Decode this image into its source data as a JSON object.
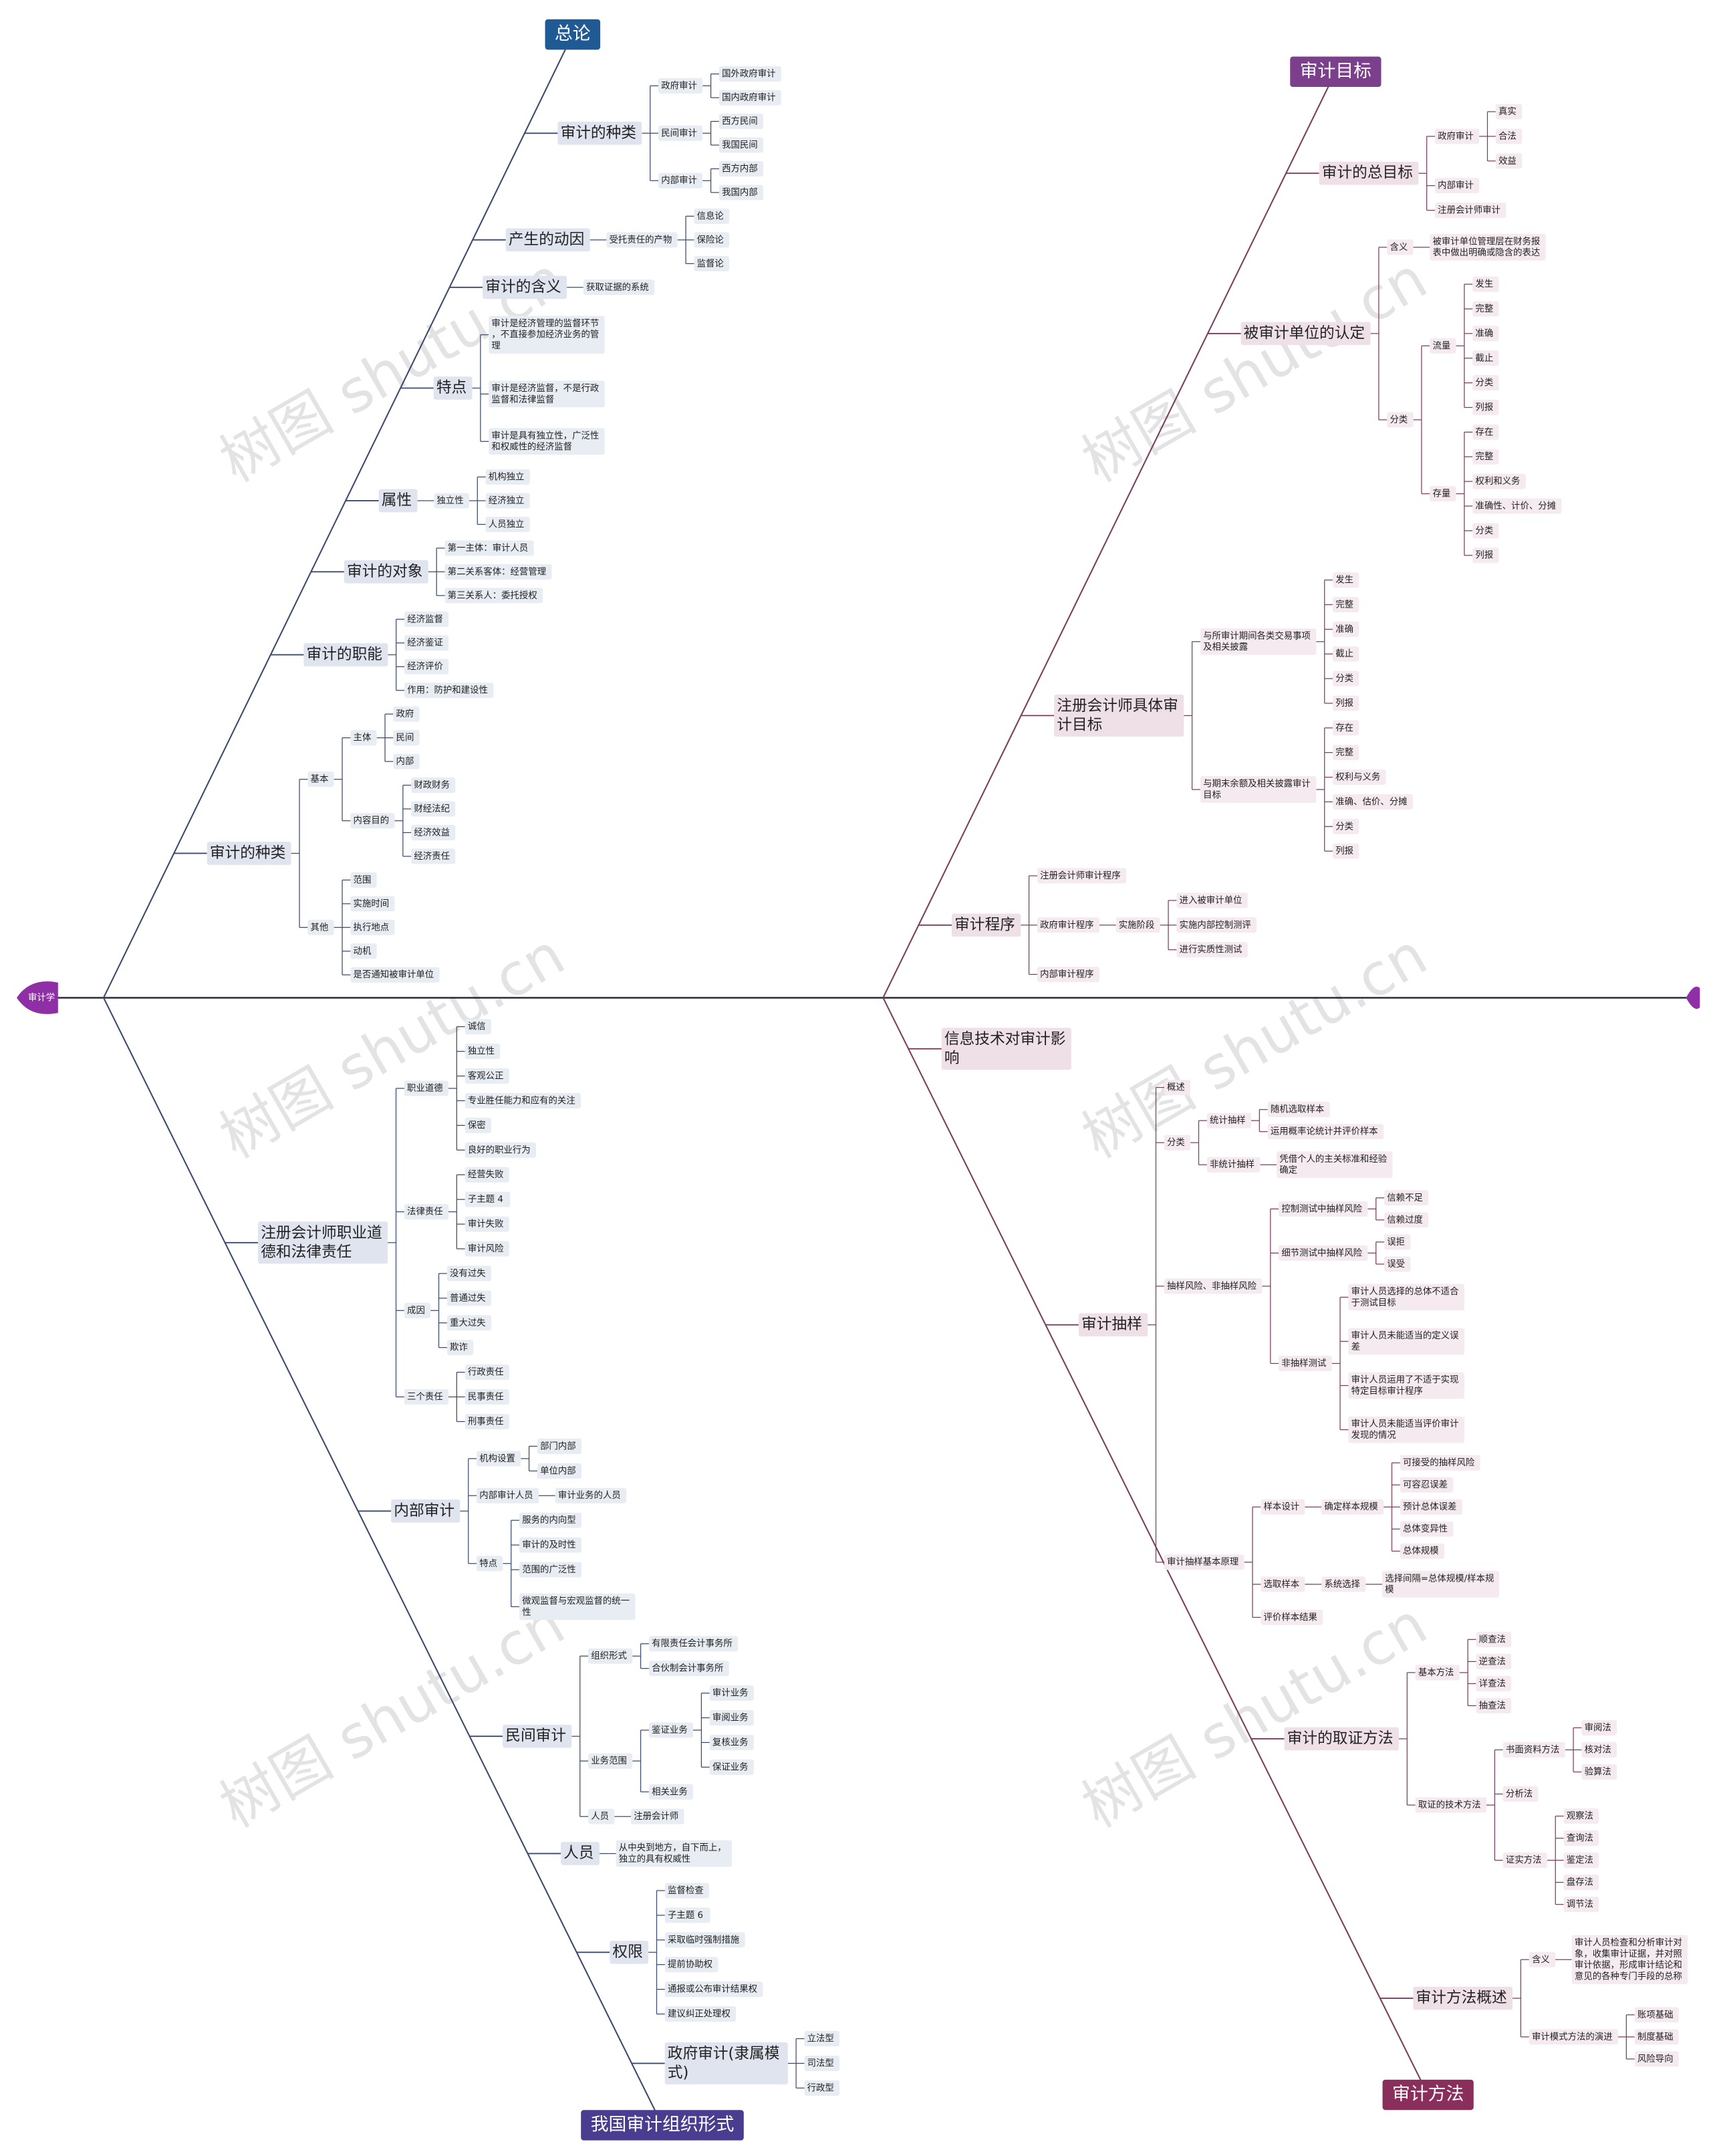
{
  "root": "审计学",
  "watermark": "树图 shutu.cn",
  "quadrants": [
    {
      "title": "总论",
      "branches": [
        {
          "label": "审计的种类",
          "children": [
            {
              "label": "政府审计",
              "children": [
                {
                  "label": "国外政府审计"
                },
                {
                  "label": "国内政府审计"
                }
              ]
            },
            {
              "label": "民间审计",
              "children": [
                {
                  "label": "西方民间"
                },
                {
                  "label": "我国民间"
                }
              ]
            },
            {
              "label": "内部审计",
              "children": [
                {
                  "label": "西方内部"
                },
                {
                  "label": "我国内部"
                }
              ]
            }
          ]
        },
        {
          "label": "产生的动因",
          "children": [
            {
              "label": "受托责任的产物",
              "children": [
                {
                  "label": "信息论"
                },
                {
                  "label": "保险论"
                },
                {
                  "label": "监督论"
                }
              ]
            }
          ]
        },
        {
          "label": "审计的含义",
          "children": [
            {
              "label": "获取证据的系统"
            }
          ]
        },
        {
          "label": "特点",
          "children": [
            {
              "label": "审计是经济管理的监督环节，不直接参加经济业务的管理"
            },
            {
              "label": "审计是经济监督，不是行政监督和法律监督"
            },
            {
              "label": "审计是具有独立性，广泛性和权威性的经济监督"
            }
          ]
        },
        {
          "label": "属性",
          "children": [
            {
              "label": "独立性",
              "children": [
                {
                  "label": "机构独立"
                },
                {
                  "label": "经济独立"
                },
                {
                  "label": "人员独立"
                }
              ]
            }
          ]
        },
        {
          "label": "审计的对象",
          "children": [
            {
              "label": "第一主体：审计人员"
            },
            {
              "label": "第二关系客体：经营管理"
            },
            {
              "label": "第三关系人：委托授权"
            }
          ]
        },
        {
          "label": "审计的职能",
          "children": [
            {
              "label": "经济监督"
            },
            {
              "label": "经济鉴证"
            },
            {
              "label": "经济评价"
            },
            {
              "label": "作用：防护和建设性"
            }
          ]
        },
        {
          "label": "审计的种类",
          "children": [
            {
              "label": "基本",
              "children": [
                {
                  "label": "主体",
                  "children": [
                    {
                      "label": "政府"
                    },
                    {
                      "label": "民间"
                    },
                    {
                      "label": "内部"
                    }
                  ]
                },
                {
                  "label": "内容目的",
                  "children": [
                    {
                      "label": "财政财务"
                    },
                    {
                      "label": "财经法纪"
                    },
                    {
                      "label": "经济效益"
                    },
                    {
                      "label": "经济责任"
                    }
                  ]
                }
              ]
            },
            {
              "label": "其他",
              "children": [
                {
                  "label": "范围"
                },
                {
                  "label": "实施时间"
                },
                {
                  "label": "执行地点"
                },
                {
                  "label": "动机"
                },
                {
                  "label": "是否通知被审计单位"
                }
              ]
            }
          ]
        }
      ]
    },
    {
      "title": "审计目标",
      "branches": [
        {
          "label": "审计的总目标",
          "children": [
            {
              "label": "政府审计",
              "children": [
                {
                  "label": "真实"
                },
                {
                  "label": "合法"
                },
                {
                  "label": "效益"
                }
              ]
            },
            {
              "label": "内部审计"
            },
            {
              "label": "注册会计师审计"
            }
          ]
        },
        {
          "label": "被审计单位的认定",
          "children": [
            {
              "label": "含义",
              "children": [
                {
                  "label": "被审计单位管理层在财务报表中做出明确或隐含的表达"
                }
              ]
            },
            {
              "label": "分类",
              "children": [
                {
                  "label": "流量",
                  "children": [
                    {
                      "label": "发生"
                    },
                    {
                      "label": "完整"
                    },
                    {
                      "label": "准确"
                    },
                    {
                      "label": "截止"
                    },
                    {
                      "label": "分类"
                    },
                    {
                      "label": "列报"
                    }
                  ]
                },
                {
                  "label": "存量",
                  "children": [
                    {
                      "label": "存在"
                    },
                    {
                      "label": "完整"
                    },
                    {
                      "label": "权利和义务"
                    },
                    {
                      "label": "准确性、计价、分摊"
                    },
                    {
                      "label": "分类"
                    },
                    {
                      "label": "列报"
                    }
                  ]
                }
              ]
            }
          ]
        },
        {
          "label": "注册会计师具体审计目标",
          "children": [
            {
              "label": "与所审计期间各类交易事项及相关披露",
              "children": [
                {
                  "label": "发生"
                },
                {
                  "label": "完整"
                },
                {
                  "label": "准确"
                },
                {
                  "label": "截止"
                },
                {
                  "label": "分类"
                },
                {
                  "label": "列报"
                }
              ]
            },
            {
              "label": "与期末余额及相关披露审计目标",
              "children": [
                {
                  "label": "存在"
                },
                {
                  "label": "完整"
                },
                {
                  "label": "权利与义务"
                },
                {
                  "label": "准确、估价、分摊"
                },
                {
                  "label": "分类"
                },
                {
                  "label": "列报"
                }
              ]
            }
          ]
        },
        {
          "label": "审计程序",
          "children": [
            {
              "label": "注册会计师审计程序"
            },
            {
              "label": "政府审计程序",
              "children": [
                {
                  "label": "实施阶段",
                  "children": [
                    {
                      "label": "进入被审计单位"
                    },
                    {
                      "label": "实施内部控制测评"
                    },
                    {
                      "label": "进行实质性测试"
                    }
                  ]
                }
              ]
            },
            {
              "label": "内部审计程序"
            }
          ]
        }
      ]
    },
    {
      "title": "我国审计组织形式",
      "branches": [
        {
          "label": "注册会计师职业道德和法律责任",
          "children": [
            {
              "label": "职业道德",
              "children": [
                {
                  "label": "诚信"
                },
                {
                  "label": "独立性"
                },
                {
                  "label": "客观公正"
                },
                {
                  "label": "专业胜任能力和应有的关注"
                },
                {
                  "label": "保密"
                },
                {
                  "label": "良好的职业行为"
                }
              ]
            },
            {
              "label": "法律责任",
              "children": [
                {
                  "label": "经营失败"
                },
                {
                  "label": "子主题 4"
                },
                {
                  "label": "审计失败"
                },
                {
                  "label": "审计风险"
                }
              ]
            },
            {
              "label": "成因",
              "children": [
                {
                  "label": "没有过失"
                },
                {
                  "label": "普通过失"
                },
                {
                  "label": "重大过失"
                },
                {
                  "label": "欺诈"
                }
              ]
            },
            {
              "label": "三个责任",
              "children": [
                {
                  "label": "行政责任"
                },
                {
                  "label": "民事责任"
                },
                {
                  "label": "刑事责任"
                }
              ]
            }
          ]
        },
        {
          "label": "内部审计",
          "children": [
            {
              "label": "机构设置",
              "children": [
                {
                  "label": "部门内部"
                },
                {
                  "label": "单位内部"
                }
              ]
            },
            {
              "label": "内部审计人员",
              "children": [
                {
                  "label": "审计业务的人员"
                }
              ]
            },
            {
              "label": "特点",
              "children": [
                {
                  "label": "服务的内向型"
                },
                {
                  "label": "审计的及时性"
                },
                {
                  "label": "范围的广泛性"
                },
                {
                  "label": "微观监督与宏观监督的统一性"
                }
              ]
            }
          ]
        },
        {
          "label": "民间审计",
          "children": [
            {
              "label": "组织形式",
              "children": [
                {
                  "label": "有限责任会计事务所"
                },
                {
                  "label": "合伙制会计事务所"
                }
              ]
            },
            {
              "label": "业务范围",
              "children": [
                {
                  "label": "鉴证业务",
                  "children": [
                    {
                      "label": "审计业务"
                    },
                    {
                      "label": "审阅业务"
                    },
                    {
                      "label": "复核业务"
                    },
                    {
                      "label": "保证业务"
                    }
                  ]
                },
                {
                  "label": "相关业务"
                }
              ]
            },
            {
              "label": "人员",
              "children": [
                {
                  "label": "注册会计师"
                }
              ]
            }
          ]
        },
        {
          "label": "人员",
          "children": [
            {
              "label": "从中央到地方，自下而上，独立的具有权威性"
            }
          ]
        },
        {
          "label": "权限",
          "children": [
            {
              "label": "监督检查"
            },
            {
              "label": "子主题 6"
            },
            {
              "label": "采取临时强制措施"
            },
            {
              "label": "提前协助权"
            },
            {
              "label": "通报或公布审计结果权"
            },
            {
              "label": "建议纠正处理权"
            }
          ]
        },
        {
          "label": "政府审计(隶属模式)",
          "children": [
            {
              "label": "立法型"
            },
            {
              "label": "司法型"
            },
            {
              "label": "行政型"
            }
          ]
        }
      ]
    },
    {
      "title": "审计方法",
      "branches": [
        {
          "label": "信息技术对审计影响"
        },
        {
          "label": "审计抽样",
          "children": [
            {
              "label": "概述"
            },
            {
              "label": "分类",
              "children": [
                {
                  "label": "统计抽样",
                  "children": [
                    {
                      "label": "随机选取样本"
                    },
                    {
                      "label": "运用概率论统计并评价样本"
                    }
                  ]
                },
                {
                  "label": "非统计抽样",
                  "children": [
                    {
                      "label": "凭借个人的主关标准和经验确定"
                    }
                  ]
                }
              ]
            },
            {
              "label": "抽样风险、非抽样风险",
              "children": [
                {
                  "label": "控制测试中抽样风险",
                  "children": [
                    {
                      "label": "信赖不足"
                    },
                    {
                      "label": "信赖过度"
                    }
                  ]
                },
                {
                  "label": "细节测试中抽样风险",
                  "children": [
                    {
                      "label": "误拒"
                    },
                    {
                      "label": "误受"
                    }
                  ]
                },
                {
                  "label": "非抽样测试",
                  "children": [
                    {
                      "label": "审计人员选择的总体不适合于测试目标"
                    },
                    {
                      "label": "审计人员未能适当的定义误差"
                    },
                    {
                      "label": "审计人员运用了不适于实现特定目标审计程序"
                    },
                    {
                      "label": "审计人员未能适当评价审计发现的情况"
                    }
                  ]
                }
              ]
            },
            {
              "label": "审计抽样基本原理",
              "children": [
                {
                  "label": "样本设计",
                  "children": [
                    {
                      "label": "确定样本规模",
                      "children": [
                        {
                          "label": "可接受的抽样风险"
                        },
                        {
                          "label": "可容忍误差"
                        },
                        {
                          "label": "预计总体误差"
                        },
                        {
                          "label": "总体变异性"
                        },
                        {
                          "label": "总体规模"
                        }
                      ]
                    }
                  ]
                },
                {
                  "label": "选取样本",
                  "children": [
                    {
                      "label": "系统选择",
                      "children": [
                        {
                          "label": "选择间隔=总体规模/样本规模"
                        }
                      ]
                    }
                  ]
                },
                {
                  "label": "评价样本结果"
                }
              ]
            }
          ]
        },
        {
          "label": "审计的取证方法",
          "children": [
            {
              "label": "基本方法",
              "children": [
                {
                  "label": "顺查法"
                },
                {
                  "label": "逆查法"
                },
                {
                  "label": "详查法"
                },
                {
                  "label": "抽查法"
                }
              ]
            },
            {
              "label": "取证的技术方法",
              "children": [
                {
                  "label": "书面资料方法",
                  "children": [
                    {
                      "label": "审阅法"
                    },
                    {
                      "label": "核对法"
                    },
                    {
                      "label": "验算法"
                    }
                  ]
                },
                {
                  "label": "分析法"
                },
                {
                  "label": "证实方法",
                  "children": [
                    {
                      "label": "观察法"
                    },
                    {
                      "label": "查询法"
                    },
                    {
                      "label": "鉴定法"
                    },
                    {
                      "label": "盘存法"
                    },
                    {
                      "label": "调节法"
                    }
                  ]
                }
              ]
            }
          ]
        },
        {
          "label": "审计方法概述",
          "children": [
            {
              "label": "含义",
              "children": [
                {
                  "label": "审计人员检查和分析审计对象，收集审计证据，并对照审计依据，形成审计结论和意见的各种专门手段的总称"
                }
              ]
            },
            {
              "label": "审计模式方法的演进",
              "children": [
                {
                  "label": "账项基础"
                },
                {
                  "label": "制度基础"
                },
                {
                  "label": "风险导向"
                }
              ]
            }
          ]
        }
      ]
    }
  ]
}
